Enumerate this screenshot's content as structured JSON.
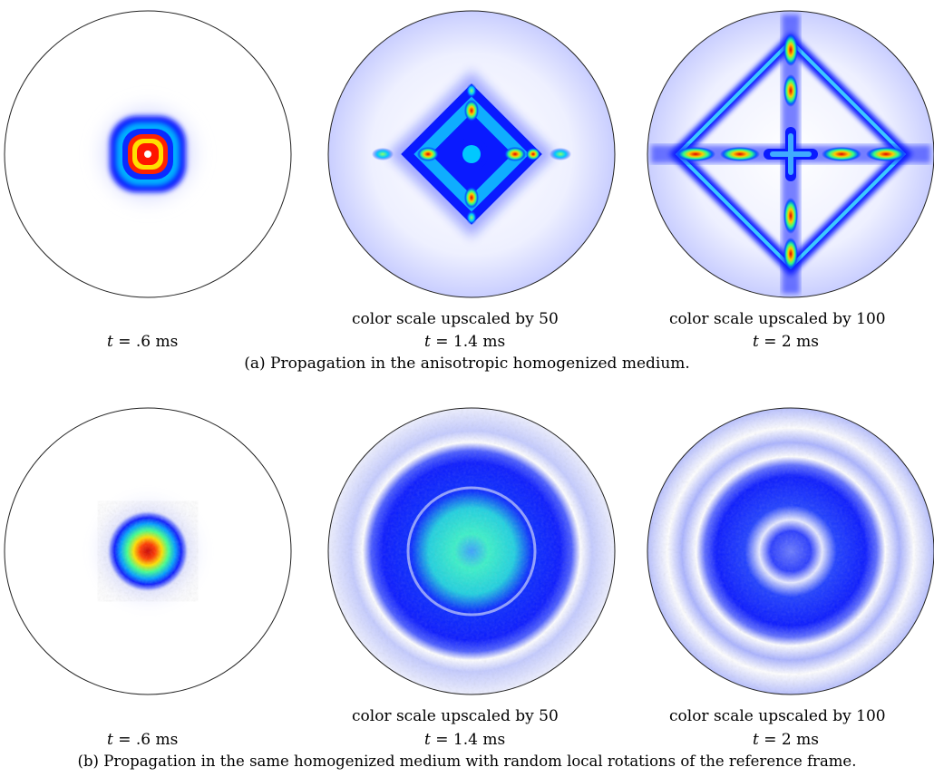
{
  "figure_a": {
    "caption": "(a) Propagation in the anisotropic homogenized medium.",
    "panels": [
      {
        "time_var": "t",
        "time_value": "= .6 ms",
        "scale_note": ""
      },
      {
        "time_var": "t",
        "time_value": "= 1.4 ms",
        "scale_note": "color scale upscaled by 50"
      },
      {
        "time_var": "t",
        "time_value": "= 2 ms",
        "scale_note": "color scale upscaled by 100"
      }
    ]
  },
  "figure_b": {
    "caption": "(b) Propagation in the same homogenized medium with random local rotations of the reference frame.",
    "panels": [
      {
        "time_var": "t",
        "time_value": "= .6 ms",
        "scale_note": ""
      },
      {
        "time_var": "t",
        "time_value": "= 1.4 ms",
        "scale_note": "color scale upscaled by 50"
      },
      {
        "time_var": "t",
        "time_value": "= 2 ms",
        "scale_note": "color scale upscaled by 100"
      }
    ]
  }
}
